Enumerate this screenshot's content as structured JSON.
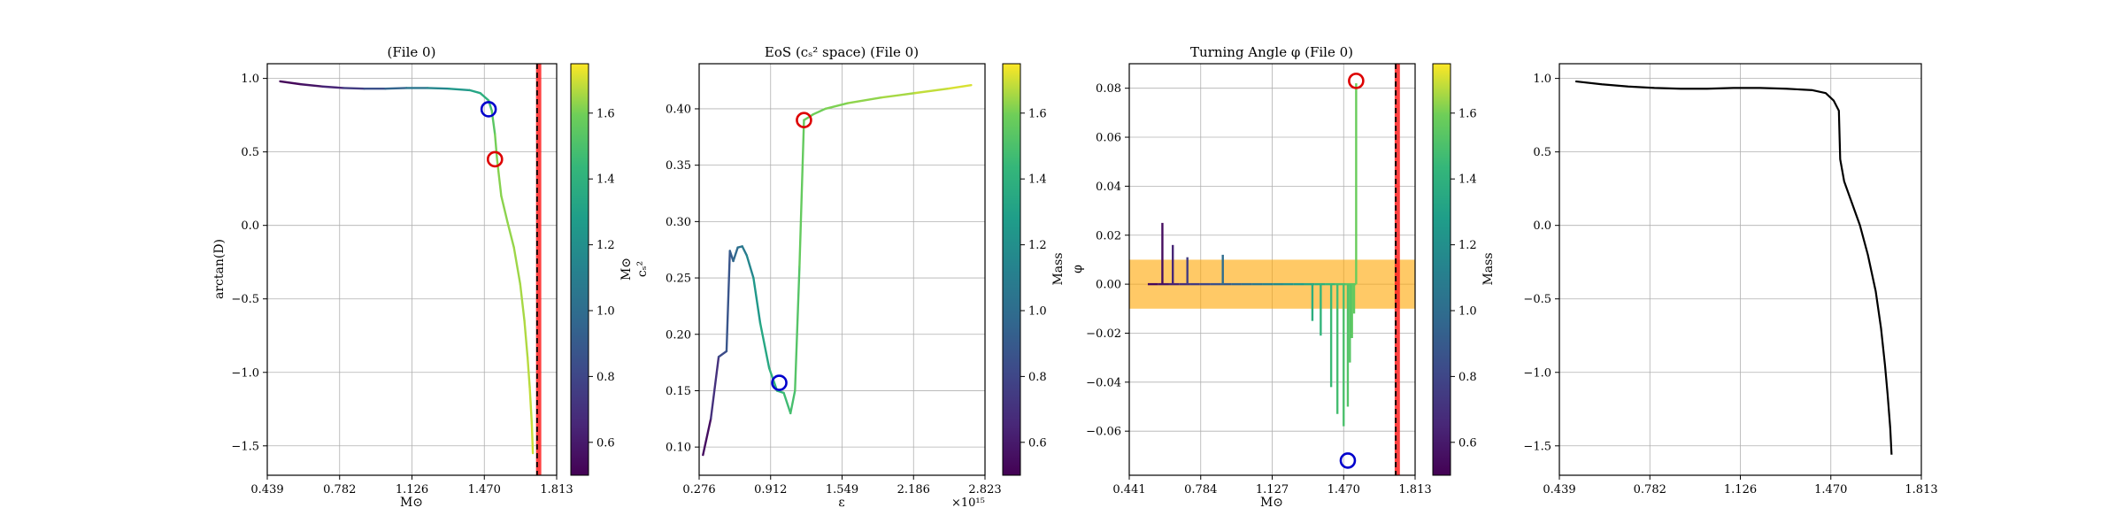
{
  "panels": [
    {
      "id": "p1",
      "title": "(File 0)",
      "xlabel": "M⊙",
      "ylabel": "arctan(D)",
      "xlim": [
        0.439,
        1.813
      ],
      "ylim": [
        -1.7,
        1.1
      ],
      "xticks": [
        "0.439",
        "0.782",
        "1.126",
        "1.470",
        "1.813"
      ],
      "yticks": [
        1.0,
        0.5,
        0.0,
        -0.5,
        -1.0,
        -1.5
      ],
      "yticklabels": [
        "1.0",
        "0.5",
        "0.0",
        "−0.5",
        "−1.0",
        "−1.5"
      ],
      "colorbar": {
        "label": "M⊙",
        "range": [
          0.5,
          1.75
        ],
        "ticks": [
          "0.6",
          "0.8",
          "1.0",
          "1.2",
          "1.4",
          "1.6"
        ]
      }
    },
    {
      "id": "p2",
      "title": "EoS (cₛ² space) (File 0)",
      "xlabel": "ε",
      "ylabel": "cₛ²",
      "xlim": [
        0.276,
        2.823
      ],
      "ylim": [
        0.075,
        0.44
      ],
      "xticks": [
        "0.276",
        "0.912",
        "1.549",
        "2.186",
        "2.823"
      ],
      "xoffset": "×10¹⁵",
      "yticks": [
        0.1,
        0.15,
        0.2,
        0.25,
        0.3,
        0.35,
        0.4
      ],
      "yticklabels": [
        "0.10",
        "0.15",
        "0.20",
        "0.25",
        "0.30",
        "0.35",
        "0.40"
      ],
      "colorbar": {
        "label": "Mass",
        "range": [
          0.5,
          1.75
        ],
        "ticks": [
          "0.6",
          "0.8",
          "1.0",
          "1.2",
          "1.4",
          "1.6"
        ]
      }
    },
    {
      "id": "p3",
      "title": "Turning Angle φ (File 0)",
      "xlabel": "M⊙",
      "ylabel": "φ",
      "xlim": [
        0.441,
        1.813
      ],
      "ylim": [
        -0.078,
        0.09
      ],
      "xticks": [
        "0.441",
        "0.784",
        "1.127",
        "1.470",
        "1.813"
      ],
      "yticks": [
        0.08,
        0.06,
        0.04,
        0.02,
        0.0,
        -0.02,
        -0.04,
        -0.06
      ],
      "yticklabels": [
        "0.08",
        "0.06",
        "0.04",
        "0.02",
        "0.00",
        "−0.02",
        "−0.04",
        "−0.06"
      ],
      "colorbar": {
        "label": "Mass",
        "range": [
          0.5,
          1.75
        ],
        "ticks": [
          "0.6",
          "0.8",
          "1.0",
          "1.2",
          "1.4",
          "1.6"
        ]
      }
    },
    {
      "id": "p4",
      "title": "",
      "xlabel": "",
      "ylabel": "",
      "xlim": [
        0.439,
        1.813
      ],
      "ylim": [
        -1.7,
        1.1
      ],
      "xticks": [
        "0.439",
        "0.782",
        "1.126",
        "1.470",
        "1.813"
      ],
      "yticks": [
        1.0,
        0.5,
        0.0,
        -0.5,
        -1.0,
        -1.5
      ],
      "yticklabels": [
        "1.0",
        "0.5",
        "0.0",
        "−0.5",
        "−1.0",
        "−1.5"
      ]
    }
  ],
  "chart_data": [
    {
      "type": "line",
      "title": "(File 0)",
      "xlabel": "M⊙",
      "ylabel": "arctan(D)",
      "colorby": "Mass",
      "x": [
        0.5,
        0.6,
        0.7,
        0.8,
        0.9,
        1.0,
        1.1,
        1.2,
        1.3,
        1.4,
        1.45,
        1.49,
        1.505,
        1.52,
        1.53,
        1.55,
        1.58,
        1.61,
        1.64,
        1.66,
        1.675,
        1.685,
        1.695,
        1.7
      ],
      "y": [
        0.98,
        0.96,
        0.945,
        0.935,
        0.93,
        0.93,
        0.935,
        0.935,
        0.93,
        0.92,
        0.9,
        0.85,
        0.78,
        0.62,
        0.45,
        0.2,
        0.02,
        -0.15,
        -0.4,
        -0.65,
        -0.9,
        -1.1,
        -1.35,
        -1.55
      ],
      "mass": [
        0.5,
        0.55,
        0.6,
        0.7,
        0.8,
        0.9,
        1.0,
        1.1,
        1.2,
        1.3,
        1.35,
        1.42,
        1.5,
        1.58,
        1.62,
        1.62,
        1.63,
        1.64,
        1.65,
        1.66,
        1.67,
        1.68,
        1.69,
        1.7
      ],
      "markers": [
        {
          "x": 1.49,
          "y": 0.79,
          "color": "#0000cc"
        },
        {
          "x": 1.52,
          "y": 0.45,
          "color": "#dd0000"
        }
      ],
      "vline": 1.72,
      "band": [
        1.715,
        1.74
      ]
    },
    {
      "type": "line",
      "title": "EoS (cₛ² space) (File 0)",
      "xlabel": "ε",
      "ylabel": "cₛ²",
      "x_scale": "×10¹⁵",
      "colorby": "Mass",
      "x": [
        0.31,
        0.38,
        0.45,
        0.52,
        0.55,
        0.58,
        0.62,
        0.66,
        0.7,
        0.76,
        0.82,
        0.9,
        0.97,
        1.03,
        1.09,
        1.13,
        1.17,
        1.21,
        1.26,
        1.29,
        1.4,
        1.6,
        1.9,
        2.2,
        2.5,
        2.7
      ],
      "y": [
        0.093,
        0.125,
        0.18,
        0.185,
        0.274,
        0.265,
        0.277,
        0.278,
        0.27,
        0.25,
        0.21,
        0.17,
        0.15,
        0.148,
        0.13,
        0.15,
        0.26,
        0.39,
        0.393,
        0.395,
        0.4,
        0.405,
        0.41,
        0.414,
        0.418,
        0.421
      ],
      "mass": [
        0.5,
        0.6,
        0.8,
        0.85,
        0.9,
        0.95,
        1.0,
        1.05,
        1.1,
        1.2,
        1.3,
        1.38,
        1.42,
        1.45,
        1.48,
        1.5,
        1.55,
        1.58,
        1.58,
        1.59,
        1.6,
        1.62,
        1.64,
        1.67,
        1.7,
        1.72
      ],
      "markers": [
        {
          "x": 0.99,
          "y": 0.157,
          "color": "#0000cc"
        },
        {
          "x": 1.21,
          "y": 0.39,
          "color": "#dd0000"
        }
      ]
    },
    {
      "type": "line",
      "title": "Turning Angle φ (File 0)",
      "xlabel": "M⊙",
      "ylabel": "φ",
      "colorby": "Mass",
      "baseline": {
        "x": [
          0.53,
          1.53
        ],
        "y": 0.0
      },
      "spikes": [
        {
          "x": 0.6,
          "y": 0.025,
          "mass": 0.55
        },
        {
          "x": 0.65,
          "y": 0.016,
          "mass": 0.65
        },
        {
          "x": 0.72,
          "y": 0.011,
          "mass": 0.75
        },
        {
          "x": 0.89,
          "y": 0.012,
          "mass": 1.0
        },
        {
          "x": 1.32,
          "y": -0.015,
          "mass": 1.38
        },
        {
          "x": 1.36,
          "y": -0.021,
          "mass": 1.42
        },
        {
          "x": 1.41,
          "y": -0.042,
          "mass": 1.45
        },
        {
          "x": 1.44,
          "y": -0.053,
          "mass": 1.48
        },
        {
          "x": 1.47,
          "y": -0.058,
          "mass": 1.5
        },
        {
          "x": 1.49,
          "y": -0.05,
          "mass": 1.52
        },
        {
          "x": 1.5,
          "y": -0.032,
          "mass": 1.53
        },
        {
          "x": 1.51,
          "y": -0.022,
          "mass": 1.55
        },
        {
          "x": 1.52,
          "y": -0.012,
          "mass": 1.56
        },
        {
          "x": 1.53,
          "y": 0.082,
          "mass": 1.58
        }
      ],
      "markers": [
        {
          "x": 1.49,
          "y": -0.072,
          "color": "#0000cc"
        },
        {
          "x": 1.53,
          "y": 0.083,
          "color": "#dd0000"
        }
      ],
      "hband": [
        -0.01,
        0.01
      ],
      "vline": 1.72,
      "band": [
        1.715,
        1.74
      ]
    },
    {
      "type": "line",
      "title": "",
      "color": "#000000",
      "x": [
        0.5,
        0.6,
        0.7,
        0.8,
        0.9,
        1.0,
        1.1,
        1.2,
        1.3,
        1.4,
        1.45,
        1.48,
        1.5,
        1.505,
        1.52,
        1.55,
        1.58,
        1.61,
        1.64,
        1.66,
        1.675,
        1.685,
        1.695,
        1.7
      ],
      "y": [
        0.98,
        0.96,
        0.945,
        0.935,
        0.93,
        0.93,
        0.935,
        0.935,
        0.93,
        0.92,
        0.9,
        0.85,
        0.78,
        0.45,
        0.3,
        0.15,
        0.0,
        -0.2,
        -0.45,
        -0.7,
        -0.95,
        -1.15,
        -1.38,
        -1.56
      ]
    }
  ]
}
